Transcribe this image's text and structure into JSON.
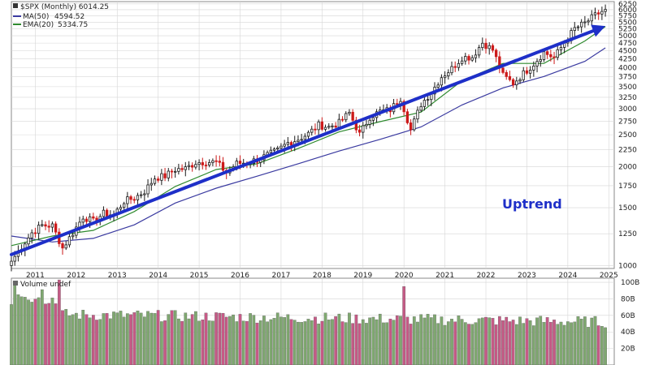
{
  "colors": {
    "up_candle": "#1a1a1a",
    "down_candle": "#cc1a1a",
    "ma50": "#3a3aa0",
    "ema20": "#2f8a2f",
    "trend_arrow": "#1e2fc8",
    "annotation": "#1e2fc8",
    "vol_up": "#7fa870",
    "vol_down": "#c65a86",
    "grid": "#d6d6d6",
    "panel_border": "#888888"
  },
  "chart_data": {
    "type": "candlestick",
    "title": "$SPX (Monthly) 6014.25",
    "annotation": "Uptrend",
    "price_panel": {
      "scale": "log",
      "ylim": [
        980,
        6350
      ],
      "y_ticks": [
        {
          "value": 1000,
          "label": "1000"
        },
        {
          "value": 1250,
          "label": "1250"
        },
        {
          "value": 1500,
          "label": "1500"
        },
        {
          "value": 1750,
          "label": "1750"
        },
        {
          "value": 2000,
          "label": "2000"
        },
        {
          "value": 2250,
          "label": "2250"
        },
        {
          "value": 2500,
          "label": "2500"
        },
        {
          "value": 2750,
          "label": "2750"
        },
        {
          "value": 3000,
          "label": "3000"
        },
        {
          "value": 3250,
          "label": "3250"
        },
        {
          "value": 3500,
          "label": "3500"
        },
        {
          "value": 3750,
          "label": "3750"
        },
        {
          "value": 4000,
          "label": "4000"
        },
        {
          "value": 4250,
          "label": "4250"
        },
        {
          "value": 4500,
          "label": "4500"
        },
        {
          "value": 4750,
          "label": "4750"
        },
        {
          "value": 5000,
          "label": "5000"
        },
        {
          "value": 5250,
          "label": "5250"
        },
        {
          "value": 5500,
          "label": "5500"
        },
        {
          "value": 5750,
          "label": "5750"
        },
        {
          "value": 6000,
          "label": "6000"
        },
        {
          "value": 6250,
          "label": "6250"
        }
      ],
      "x_ticks": [
        {
          "value": "2011-01",
          "label": "2011"
        },
        {
          "value": "2012-01",
          "label": "2012"
        },
        {
          "value": "2013-01",
          "label": "2013"
        },
        {
          "value": "2014-01",
          "label": "2014"
        },
        {
          "value": "2015-01",
          "label": "2015"
        },
        {
          "value": "2016-01",
          "label": "2016"
        },
        {
          "value": "2017-01",
          "label": "2017"
        },
        {
          "value": "2018-01",
          "label": "2018"
        },
        {
          "value": "2019-01",
          "label": "2019"
        },
        {
          "value": "2020-01",
          "label": "2020"
        },
        {
          "value": "2021-01",
          "label": "2021"
        },
        {
          "value": "2022-01",
          "label": "2022"
        },
        {
          "value": "2023-01",
          "label": "2023"
        },
        {
          "value": "2024-01",
          "label": "2024"
        },
        {
          "value": "2025-01",
          "label": "2025"
        }
      ],
      "legend": [
        {
          "name": "MA(50)",
          "value": "4594.52",
          "color_key": "ma50"
        },
        {
          "name": "EMA(20)",
          "value": "5334.75",
          "color_key": "ema20"
        }
      ],
      "trendline": {
        "from": {
          "x": "2010-06",
          "y": 1080
        },
        "to": {
          "x": "2024-12",
          "y": 5350
        }
      },
      "monthly_close": [
        {
          "x": "2010-06",
          "y": 1031
        },
        {
          "x": "2010-09",
          "y": 1141
        },
        {
          "x": "2010-12",
          "y": 1258
        },
        {
          "x": "2011-03",
          "y": 1326
        },
        {
          "x": "2011-06",
          "y": 1321
        },
        {
          "x": "2011-09",
          "y": 1131
        },
        {
          "x": "2011-12",
          "y": 1258
        },
        {
          "x": "2012-03",
          "y": 1408
        },
        {
          "x": "2012-06",
          "y": 1362
        },
        {
          "x": "2012-09",
          "y": 1441
        },
        {
          "x": "2012-12",
          "y": 1426
        },
        {
          "x": "2013-03",
          "y": 1569
        },
        {
          "x": "2013-06",
          "y": 1606
        },
        {
          "x": "2013-09",
          "y": 1682
        },
        {
          "x": "2013-12",
          "y": 1848
        },
        {
          "x": "2014-03",
          "y": 1872
        },
        {
          "x": "2014-06",
          "y": 1960
        },
        {
          "x": "2014-09",
          "y": 1972
        },
        {
          "x": "2014-12",
          "y": 2059
        },
        {
          "x": "2015-03",
          "y": 2068
        },
        {
          "x": "2015-06",
          "y": 2063
        },
        {
          "x": "2015-09",
          "y": 1920
        },
        {
          "x": "2015-12",
          "y": 2044
        },
        {
          "x": "2016-03",
          "y": 2060
        },
        {
          "x": "2016-06",
          "y": 2099
        },
        {
          "x": "2016-09",
          "y": 2168
        },
        {
          "x": "2016-12",
          "y": 2239
        },
        {
          "x": "2017-03",
          "y": 2363
        },
        {
          "x": "2017-06",
          "y": 2423
        },
        {
          "x": "2017-09",
          "y": 2519
        },
        {
          "x": "2017-12",
          "y": 2674
        },
        {
          "x": "2018-03",
          "y": 2641
        },
        {
          "x": "2018-06",
          "y": 2718
        },
        {
          "x": "2018-09",
          "y": 2914
        },
        {
          "x": "2018-12",
          "y": 2507
        },
        {
          "x": "2019-03",
          "y": 2834
        },
        {
          "x": "2019-06",
          "y": 2942
        },
        {
          "x": "2019-09",
          "y": 2977
        },
        {
          "x": "2019-12",
          "y": 3231
        },
        {
          "x": "2020-03",
          "y": 2585
        },
        {
          "x": "2020-06",
          "y": 3100
        },
        {
          "x": "2020-09",
          "y": 3363
        },
        {
          "x": "2020-12",
          "y": 3756
        },
        {
          "x": "2021-03",
          "y": 3973
        },
        {
          "x": "2021-06",
          "y": 4298
        },
        {
          "x": "2021-09",
          "y": 4308
        },
        {
          "x": "2021-12",
          "y": 4766
        },
        {
          "x": "2022-03",
          "y": 4530
        },
        {
          "x": "2022-06",
          "y": 3785
        },
        {
          "x": "2022-09",
          "y": 3586
        },
        {
          "x": "2022-12",
          "y": 3840
        },
        {
          "x": "2023-03",
          "y": 4109
        },
        {
          "x": "2023-06",
          "y": 4450
        },
        {
          "x": "2023-09",
          "y": 4288
        },
        {
          "x": "2023-12",
          "y": 4770
        },
        {
          "x": "2024-03",
          "y": 5254
        },
        {
          "x": "2024-06",
          "y": 5460
        },
        {
          "x": "2024-09",
          "y": 5762
        },
        {
          "x": "2024-12",
          "y": 6014
        }
      ],
      "ma50": [
        {
          "x": "2010-06",
          "y": 1230
        },
        {
          "x": "2011-06",
          "y": 1180
        },
        {
          "x": "2012-06",
          "y": 1210
        },
        {
          "x": "2013-06",
          "y": 1330
        },
        {
          "x": "2014-06",
          "y": 1550
        },
        {
          "x": "2015-06",
          "y": 1720
        },
        {
          "x": "2016-06",
          "y": 1870
        },
        {
          "x": "2017-06",
          "y": 2040
        },
        {
          "x": "2018-06",
          "y": 2230
        },
        {
          "x": "2019-06",
          "y": 2420
        },
        {
          "x": "2020-06",
          "y": 2640
        },
        {
          "x": "2021-06",
          "y": 3080
        },
        {
          "x": "2022-06",
          "y": 3470
        },
        {
          "x": "2023-06",
          "y": 3760
        },
        {
          "x": "2024-06",
          "y": 4180
        },
        {
          "x": "2024-12",
          "y": 4594
        }
      ],
      "ema20": [
        {
          "x": "2010-06",
          "y": 1150
        },
        {
          "x": "2011-06",
          "y": 1230
        },
        {
          "x": "2012-06",
          "y": 1280
        },
        {
          "x": "2013-06",
          "y": 1460
        },
        {
          "x": "2014-06",
          "y": 1740
        },
        {
          "x": "2015-06",
          "y": 1960
        },
        {
          "x": "2016-06",
          "y": 2040
        },
        {
          "x": "2017-06",
          "y": 2270
        },
        {
          "x": "2018-06",
          "y": 2550
        },
        {
          "x": "2019-06",
          "y": 2740
        },
        {
          "x": "2020-06",
          "y": 2930
        },
        {
          "x": "2021-06",
          "y": 3650
        },
        {
          "x": "2022-06",
          "y": 4120
        },
        {
          "x": "2023-06",
          "y": 4120
        },
        {
          "x": "2024-06",
          "y": 4820
        },
        {
          "x": "2024-12",
          "y": 5335
        }
      ]
    },
    "volume_panel": {
      "title": "Volume undef",
      "ylim": [
        0,
        105
      ],
      "unit": "B",
      "y_ticks": [
        {
          "value": 20,
          "label": "20B"
        },
        {
          "value": 40,
          "label": "40B"
        },
        {
          "value": 60,
          "label": "60B"
        },
        {
          "value": 80,
          "label": "80B"
        },
        {
          "value": 100,
          "label": "100B"
        }
      ]
    }
  }
}
